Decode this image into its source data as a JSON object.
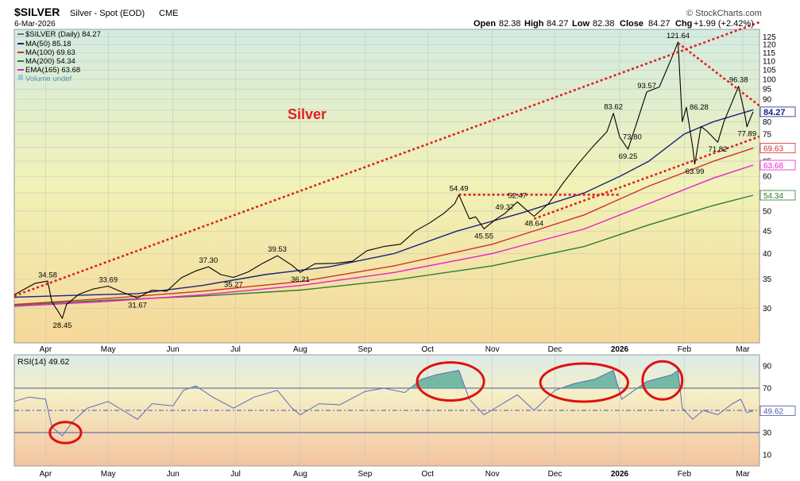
{
  "header": {
    "symbol": "$SILVER",
    "name": "Silver - Spot (EOD)",
    "exchange": "CME",
    "date": "6-Mar-2026",
    "copyright": "© StockCharts.com",
    "open_label": "Open",
    "open": "82.38",
    "high_label": "High",
    "high": "84.27",
    "low_label": "Low",
    "low": "82.38",
    "close_label": "Close",
    "close": "84.27",
    "chg_label": "Chg",
    "chg": "+1.99 (+2.42%)"
  },
  "chart_title": "Silver",
  "legend": [
    {
      "text": "$SILVER (Daily) 84.27",
      "color": "#000000"
    },
    {
      "text": "MA(50) 85.18",
      "color": "#1a237e"
    },
    {
      "text": "MA(100) 69.63",
      "color": "#d32f2f"
    },
    {
      "text": "MA(200) 54.34",
      "color": "#2e7d32"
    },
    {
      "text": "EMA(165) 63.68",
      "color": "#e91ecf"
    },
    {
      "text": "Volume undef",
      "color": "#6aa7c9"
    }
  ],
  "price_badges": [
    {
      "text": "84.27",
      "value": 84.27,
      "color": "#1a237e",
      "bold": true
    },
    {
      "text": "69.63",
      "value": 69.63,
      "color": "#d32f2f"
    },
    {
      "text": "63.68",
      "value": 63.68,
      "color": "#e91ecf"
    },
    {
      "text": "54.34",
      "value": 54.34,
      "color": "#2e7d32"
    }
  ],
  "rsi": {
    "label": "RSI(14) 49.62",
    "badge": "49.62",
    "ticks": [
      90,
      70,
      50,
      30,
      10
    ]
  },
  "x_labels": [
    "Apr",
    "May",
    "Jun",
    "Jul",
    "Aug",
    "Sep",
    "Oct",
    "Nov",
    "Dec",
    "2026",
    "Feb",
    "Mar"
  ],
  "colors": {
    "price": "#000000",
    "ma50": "#1a237e",
    "ma100": "#d32f2f",
    "ma200": "#2e7d32",
    "ema165": "#e91ecf",
    "rsi": "#5c6bc0",
    "trend": "#e02020"
  },
  "chart_data": {
    "type": "line",
    "y_scale": "log",
    "ylim": [
      25,
      130
    ],
    "y_ticks": [
      30,
      35,
      40,
      45,
      50,
      55,
      60,
      65,
      70,
      75,
      80,
      85,
      90,
      95,
      100,
      105,
      110,
      115,
      120,
      125
    ],
    "x_range": [
      "2025-03-17",
      "2026-03-09"
    ],
    "series": [
      {
        "key": "price",
        "points": [
          [
            "2025-03-17",
            32.2
          ],
          [
            "2025-03-21",
            33.0
          ],
          [
            "2025-03-27",
            34.2
          ],
          [
            "2025-04-02",
            34.6
          ],
          [
            "2025-04-04",
            31.0
          ],
          [
            "2025-04-07",
            29.5
          ],
          [
            "2025-04-09",
            28.45
          ],
          [
            "2025-04-11",
            30.6
          ],
          [
            "2025-04-17",
            32.3
          ],
          [
            "2025-04-24",
            33.2
          ],
          [
            "2025-05-01",
            33.69
          ],
          [
            "2025-05-08",
            32.6
          ],
          [
            "2025-05-15",
            31.67
          ],
          [
            "2025-05-22",
            33.0
          ],
          [
            "2025-05-29",
            32.8
          ],
          [
            "2025-06-05",
            35.2
          ],
          [
            "2025-06-12",
            36.5
          ],
          [
            "2025-06-18",
            37.3
          ],
          [
            "2025-06-24",
            35.8
          ],
          [
            "2025-06-30",
            35.27
          ],
          [
            "2025-07-07",
            36.3
          ],
          [
            "2025-07-14",
            38.0
          ],
          [
            "2025-07-21",
            39.53
          ],
          [
            "2025-07-28",
            37.6
          ],
          [
            "2025-08-01",
            36.21
          ],
          [
            "2025-08-08",
            37.9
          ],
          [
            "2025-08-18",
            38.0
          ],
          [
            "2025-08-26",
            38.4
          ],
          [
            "2025-09-02",
            40.6
          ],
          [
            "2025-09-10",
            41.5
          ],
          [
            "2025-09-18",
            42.0
          ],
          [
            "2025-09-25",
            45.0
          ],
          [
            "2025-10-02",
            47.0
          ],
          [
            "2025-10-09",
            49.5
          ],
          [
            "2025-10-14",
            52.0
          ],
          [
            "2025-10-16",
            54.49
          ],
          [
            "2025-10-21",
            48.0
          ],
          [
            "2025-10-24",
            48.5
          ],
          [
            "2025-10-28",
            45.55
          ],
          [
            "2025-11-03",
            48.0
          ],
          [
            "2025-11-07",
            49.37
          ],
          [
            "2025-11-13",
            52.47
          ],
          [
            "2025-11-18",
            50.0
          ],
          [
            "2025-11-21",
            48.64
          ],
          [
            "2025-11-28",
            52.0
          ],
          [
            "2025-12-05",
            58.0
          ],
          [
            "2025-12-12",
            64.0
          ],
          [
            "2025-12-19",
            70.0
          ],
          [
            "2025-12-26",
            76.0
          ],
          [
            "2025-12-29",
            83.62
          ],
          [
            "2026-01-01",
            73.8
          ],
          [
            "2026-01-05",
            69.25
          ],
          [
            "2026-01-09",
            79.0
          ],
          [
            "2026-01-14",
            93.57
          ],
          [
            "2026-01-20",
            96.0
          ],
          [
            "2026-01-26",
            112.0
          ],
          [
            "2026-01-29",
            121.64
          ],
          [
            "2026-01-31",
            80.0
          ],
          [
            "2026-02-02",
            86.28
          ],
          [
            "2026-02-05",
            70.0
          ],
          [
            "2026-02-06",
            63.99
          ],
          [
            "2026-02-09",
            78.0
          ],
          [
            "2026-02-12",
            76.0
          ],
          [
            "2026-02-17",
            71.82
          ],
          [
            "2026-02-20",
            80.0
          ],
          [
            "2026-02-24",
            89.0
          ],
          [
            "2026-02-27",
            96.38
          ],
          [
            "2026-03-02",
            83.0
          ],
          [
            "2026-03-03",
            77.89
          ],
          [
            "2026-03-05",
            82.3
          ],
          [
            "2026-03-06",
            84.27
          ]
        ]
      },
      {
        "key": "ma50",
        "points": [
          [
            "2025-03-17",
            31.8
          ],
          [
            "2025-04-15",
            32.1
          ],
          [
            "2025-05-15",
            32.4
          ],
          [
            "2025-06-15",
            33.8
          ],
          [
            "2025-07-15",
            35.8
          ],
          [
            "2025-08-15",
            37.3
          ],
          [
            "2025-09-15",
            40.0
          ],
          [
            "2025-10-15",
            45.0
          ],
          [
            "2025-11-15",
            49.5
          ],
          [
            "2025-12-15",
            55.0
          ],
          [
            "2026-01-01",
            60.0
          ],
          [
            "2026-01-15",
            65.0
          ],
          [
            "2026-02-01",
            75.0
          ],
          [
            "2026-02-15",
            80.0
          ],
          [
            "2026-03-06",
            85.18
          ]
        ]
      },
      {
        "key": "ma100",
        "points": [
          [
            "2025-03-17",
            30.6
          ],
          [
            "2025-05-01",
            31.6
          ],
          [
            "2025-06-15",
            32.8
          ],
          [
            "2025-08-01",
            34.5
          ],
          [
            "2025-09-15",
            37.5
          ],
          [
            "2025-11-01",
            42.0
          ],
          [
            "2025-12-15",
            49.0
          ],
          [
            "2026-01-15",
            57.0
          ],
          [
            "2026-02-15",
            65.0
          ],
          [
            "2026-03-06",
            69.63
          ]
        ]
      },
      {
        "key": "ema165",
        "points": [
          [
            "2025-03-17",
            30.3
          ],
          [
            "2025-05-01",
            31.1
          ],
          [
            "2025-06-15",
            32.2
          ],
          [
            "2025-08-01",
            33.8
          ],
          [
            "2025-09-15",
            36.2
          ],
          [
            "2025-11-01",
            40.0
          ],
          [
            "2025-12-15",
            45.5
          ],
          [
            "2026-01-15",
            52.0
          ],
          [
            "2026-02-15",
            59.5
          ],
          [
            "2026-03-06",
            63.68
          ]
        ]
      },
      {
        "key": "ma200",
        "points": [
          [
            "2025-03-17",
            30.5
          ],
          [
            "2025-05-01",
            31.3
          ],
          [
            "2025-06-15",
            32.0
          ],
          [
            "2025-08-01",
            33.0
          ],
          [
            "2025-09-15",
            34.8
          ],
          [
            "2025-11-01",
            37.5
          ],
          [
            "2025-12-15",
            41.5
          ],
          [
            "2026-01-15",
            46.5
          ],
          [
            "2026-02-15",
            51.5
          ],
          [
            "2026-03-06",
            54.34
          ]
        ]
      }
    ],
    "annotations": [
      {
        "text": "34.58",
        "date": "2025-04-02",
        "value": 34.58,
        "pos": "above"
      },
      {
        "text": "28.45",
        "date": "2025-04-09",
        "value": 28.45,
        "pos": "below"
      },
      {
        "text": "33.69",
        "date": "2025-05-01",
        "value": 33.69,
        "pos": "above"
      },
      {
        "text": "31.67",
        "date": "2025-05-15",
        "value": 31.67,
        "pos": "below"
      },
      {
        "text": "37.30",
        "date": "2025-06-18",
        "value": 37.3,
        "pos": "above"
      },
      {
        "text": "35.27",
        "date": "2025-06-30",
        "value": 35.27,
        "pos": "below"
      },
      {
        "text": "39.53",
        "date": "2025-07-21",
        "value": 39.53,
        "pos": "above"
      },
      {
        "text": "36.21",
        "date": "2025-08-01",
        "value": 36.21,
        "pos": "below"
      },
      {
        "text": "54.49",
        "date": "2025-10-16",
        "value": 54.49,
        "pos": "above"
      },
      {
        "text": "45.55",
        "date": "2025-10-28",
        "value": 45.55,
        "pos": "below"
      },
      {
        "text": "49.37",
        "date": "2025-11-07",
        "value": 49.37,
        "pos": "above"
      },
      {
        "text": "52.47",
        "date": "2025-11-13",
        "value": 52.47,
        "pos": "above"
      },
      {
        "text": "48.64",
        "date": "2025-11-21",
        "value": 48.64,
        "pos": "below"
      },
      {
        "text": "83.62",
        "date": "2025-12-29",
        "value": 83.62,
        "pos": "above"
      },
      {
        "text": "73.80",
        "date": "2026-01-01",
        "value": 73.8,
        "pos": "right"
      },
      {
        "text": "69.25",
        "date": "2026-01-05",
        "value": 69.25,
        "pos": "below"
      },
      {
        "text": "93.57",
        "date": "2026-01-14",
        "value": 93.57,
        "pos": "above"
      },
      {
        "text": "121.64",
        "date": "2026-01-29",
        "value": 121.64,
        "pos": "above"
      },
      {
        "text": "86.28",
        "date": "2026-02-02",
        "value": 86.28,
        "pos": "right"
      },
      {
        "text": "63.99",
        "date": "2026-02-06",
        "value": 63.99,
        "pos": "below"
      },
      {
        "text": "71.82",
        "date": "2026-02-17",
        "value": 71.82,
        "pos": "below"
      },
      {
        "text": "96.38",
        "date": "2026-02-27",
        "value": 96.38,
        "pos": "above"
      },
      {
        "text": "77.89",
        "date": "2026-03-03",
        "value": 77.89,
        "pos": "below"
      }
    ],
    "trendlines": [
      {
        "from": [
          "2025-03-17",
          32.0
        ],
        "to": [
          "2026-03-09",
          135.0
        ]
      },
      {
        "from": [
          "2025-11-21",
          48.0
        ],
        "to": [
          "2026-03-09",
          74.0
        ]
      },
      {
        "from": [
          "2026-01-29",
          121.0
        ],
        "to": [
          "2026-03-09",
          87.0
        ]
      },
      {
        "from": [
          "2025-10-16",
          54.5
        ],
        "to": [
          "2026-01-01",
          54.5
        ]
      }
    ],
    "rsi": {
      "ylim": [
        0,
        100
      ],
      "levels": [
        70,
        50,
        30
      ],
      "points": [
        [
          "2025-03-17",
          58
        ],
        [
          "2025-03-24",
          62
        ],
        [
          "2025-04-01",
          60
        ],
        [
          "2025-04-04",
          35
        ],
        [
          "2025-04-09",
          27
        ],
        [
          "2025-04-14",
          40
        ],
        [
          "2025-04-21",
          52
        ],
        [
          "2025-05-01",
          58
        ],
        [
          "2025-05-08",
          50
        ],
        [
          "2025-05-15",
          42
        ],
        [
          "2025-05-22",
          56
        ],
        [
          "2025-06-01",
          54
        ],
        [
          "2025-06-06",
          68
        ],
        [
          "2025-06-12",
          72
        ],
        [
          "2025-06-20",
          62
        ],
        [
          "2025-06-30",
          52
        ],
        [
          "2025-07-10",
          62
        ],
        [
          "2025-07-21",
          68
        ],
        [
          "2025-07-28",
          52
        ],
        [
          "2025-08-01",
          46
        ],
        [
          "2025-08-10",
          56
        ],
        [
          "2025-08-20",
          55
        ],
        [
          "2025-09-01",
          67
        ],
        [
          "2025-09-10",
          70
        ],
        [
          "2025-09-20",
          66
        ],
        [
          "2025-09-28",
          78
        ],
        [
          "2025-10-05",
          82
        ],
        [
          "2025-10-16",
          86
        ],
        [
          "2025-10-21",
          60
        ],
        [
          "2025-10-28",
          46
        ],
        [
          "2025-11-05",
          55
        ],
        [
          "2025-11-13",
          64
        ],
        [
          "2025-11-21",
          50
        ],
        [
          "2025-12-01",
          68
        ],
        [
          "2025-12-10",
          74
        ],
        [
          "2025-12-20",
          78
        ],
        [
          "2025-12-29",
          86
        ],
        [
          "2026-01-02",
          60
        ],
        [
          "2026-01-08",
          68
        ],
        [
          "2026-01-14",
          76
        ],
        [
          "2026-01-26",
          82
        ],
        [
          "2026-01-29",
          86
        ],
        [
          "2026-01-31",
          52
        ],
        [
          "2026-02-05",
          42
        ],
        [
          "2026-02-10",
          50
        ],
        [
          "2026-02-17",
          46
        ],
        [
          "2026-02-24",
          56
        ],
        [
          "2026-02-28",
          60
        ],
        [
          "2026-03-03",
          48
        ],
        [
          "2026-03-06",
          49.62
        ]
      ],
      "ellipses": [
        {
          "from": "2025-04-03",
          "to": "2025-04-18",
          "center": 30
        },
        {
          "from": "2025-09-26",
          "to": "2025-10-28",
          "center": 76
        },
        {
          "from": "2025-11-24",
          "to": "2026-01-05",
          "center": 75
        },
        {
          "from": "2026-01-12",
          "to": "2026-01-31",
          "center": 77
        }
      ]
    }
  }
}
